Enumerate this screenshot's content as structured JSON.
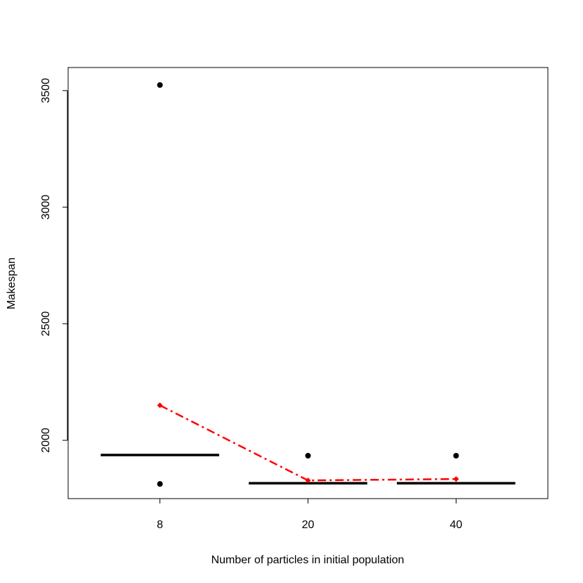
{
  "chart_data": {
    "type": "box",
    "xlabel": "Number of particles in initial population",
    "ylabel": "Makespan",
    "categories": [
      "8",
      "20",
      "40"
    ],
    "medians": [
      1937,
      1816,
      1816
    ],
    "outliers": [
      [
        3524,
        1813
      ],
      [
        1934
      ],
      [
        1934
      ]
    ],
    "means": {
      "color": "#ff0000",
      "values": [
        2150,
        1828,
        1834
      ]
    },
    "color": "#000000",
    "ylim": [
      1750,
      3599
    ],
    "yticks": [
      2000,
      2500,
      3000,
      3500
    ]
  }
}
